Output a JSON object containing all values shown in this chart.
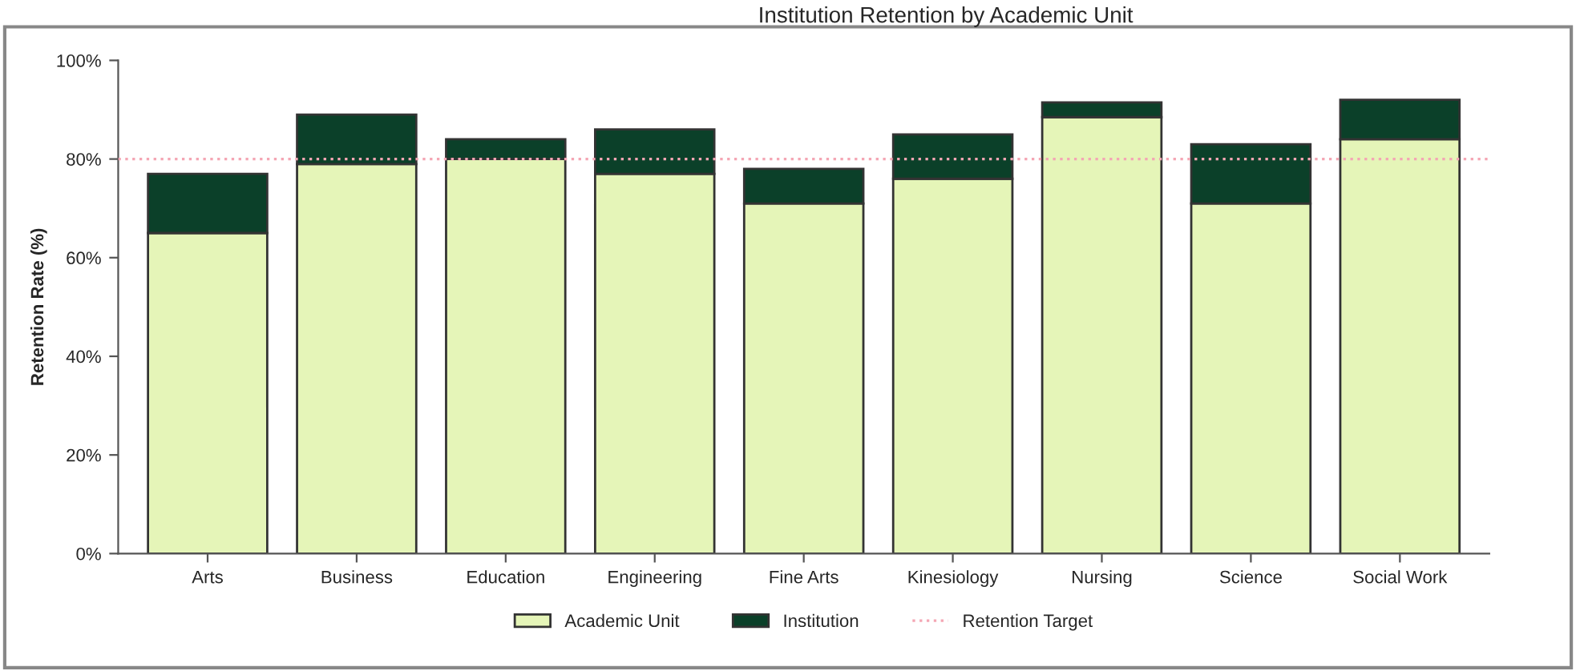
{
  "chart_data": {
    "type": "bar",
    "title": "Institution Retention by Academic Unit",
    "ylabel": "Retention Rate (%)",
    "categories": [
      "Arts",
      "Business",
      "Education",
      "Engineering",
      "Fine Arts",
      "Kinesiology",
      "Nursing",
      "Science",
      "Social Work"
    ],
    "stacked": true,
    "series": [
      {
        "name": "Academic Unit",
        "color": "#e5f5b8",
        "values": [
          65,
          79,
          80,
          77,
          71,
          76,
          88.5,
          71,
          84
        ]
      },
      {
        "name": "Institution",
        "color": "#0b4029",
        "values": [
          12,
          10,
          4,
          9,
          7,
          9,
          3,
          12,
          8
        ]
      }
    ],
    "ref_lines": [
      {
        "axis": "y",
        "value": 80,
        "label": "Retention Target",
        "color": "#f4a6b4",
        "line_style": "dotted"
      }
    ],
    "ylim": [
      0,
      100
    ],
    "yticks": [
      {
        "value": 0,
        "label": "0%"
      },
      {
        "value": 20,
        "label": "20%"
      },
      {
        "value": 40,
        "label": "40%"
      },
      {
        "value": 60,
        "label": "60%"
      },
      {
        "value": 80,
        "label": "80%"
      },
      {
        "value": 100,
        "label": "100%"
      }
    ],
    "grid": false,
    "legend": "bottom"
  }
}
